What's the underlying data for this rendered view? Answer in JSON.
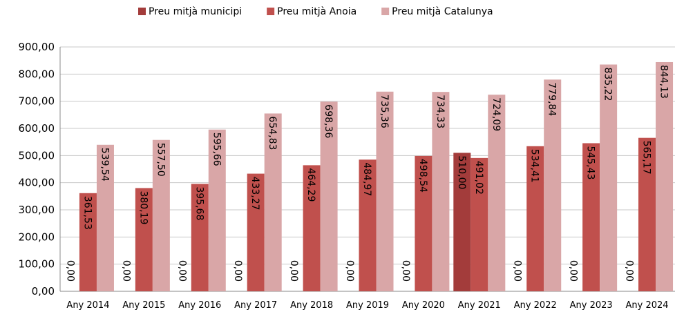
{
  "chart_data": {
    "type": "bar",
    "categories": [
      "Any 2014",
      "Any 2015",
      "Any 2016",
      "Any 2017",
      "Any 2018",
      "Any 2019",
      "Any 2020",
      "Any 2021",
      "Any 2022",
      "Any 2023",
      "Any 2024"
    ],
    "series": [
      {
        "name": "Preu mitjà municipi",
        "color": "#a33c3b",
        "values": [
          0,
          0,
          0,
          0,
          0,
          0,
          0,
          510,
          0,
          0,
          0
        ],
        "value_labels": [
          "0,00",
          "0,00",
          "0,00",
          "0,00",
          "0,00",
          "0,00",
          "0,00",
          "510,00",
          "0,00",
          "0,00",
          "0,00"
        ]
      },
      {
        "name": "Preu mitjà Anoia",
        "color": "#c0504d",
        "values": [
          361.53,
          380.19,
          395.68,
          433.27,
          464.29,
          484.97,
          498.54,
          491.02,
          534.41,
          545.43,
          565.17
        ],
        "value_labels": [
          "361,53",
          "380,19",
          "395,68",
          "433,27",
          "464,29",
          "484,97",
          "498,54",
          "491,02",
          "534,41",
          "545,43",
          "565,17"
        ]
      },
      {
        "name": "Preu mitjà Catalunya",
        "color": "#d9a6a7",
        "values": [
          539.54,
          557.5,
          595.66,
          654.83,
          698.36,
          735.36,
          734.33,
          724.09,
          779.84,
          835.22,
          844.13
        ],
        "value_labels": [
          "539,54",
          "557,50",
          "595,66",
          "654,83",
          "698,36",
          "735,36",
          "734,33",
          "724,09",
          "779,84",
          "835,22",
          "844,13"
        ]
      }
    ],
    "ylim": [
      0,
      900
    ],
    "yticks": [
      {
        "value": 0,
        "label": "0,00"
      },
      {
        "value": 100,
        "label": "100,00"
      },
      {
        "value": 200,
        "label": "200,00"
      },
      {
        "value": 300,
        "label": "300,00"
      },
      {
        "value": 400,
        "label": "400,00"
      },
      {
        "value": 500,
        "label": "500,00"
      },
      {
        "value": 600,
        "label": "600,00"
      },
      {
        "value": 700,
        "label": "700,00"
      },
      {
        "value": 800,
        "label": "800,00"
      },
      {
        "value": 900,
        "label": "900,00"
      }
    ],
    "grid": true,
    "legend": "top"
  }
}
